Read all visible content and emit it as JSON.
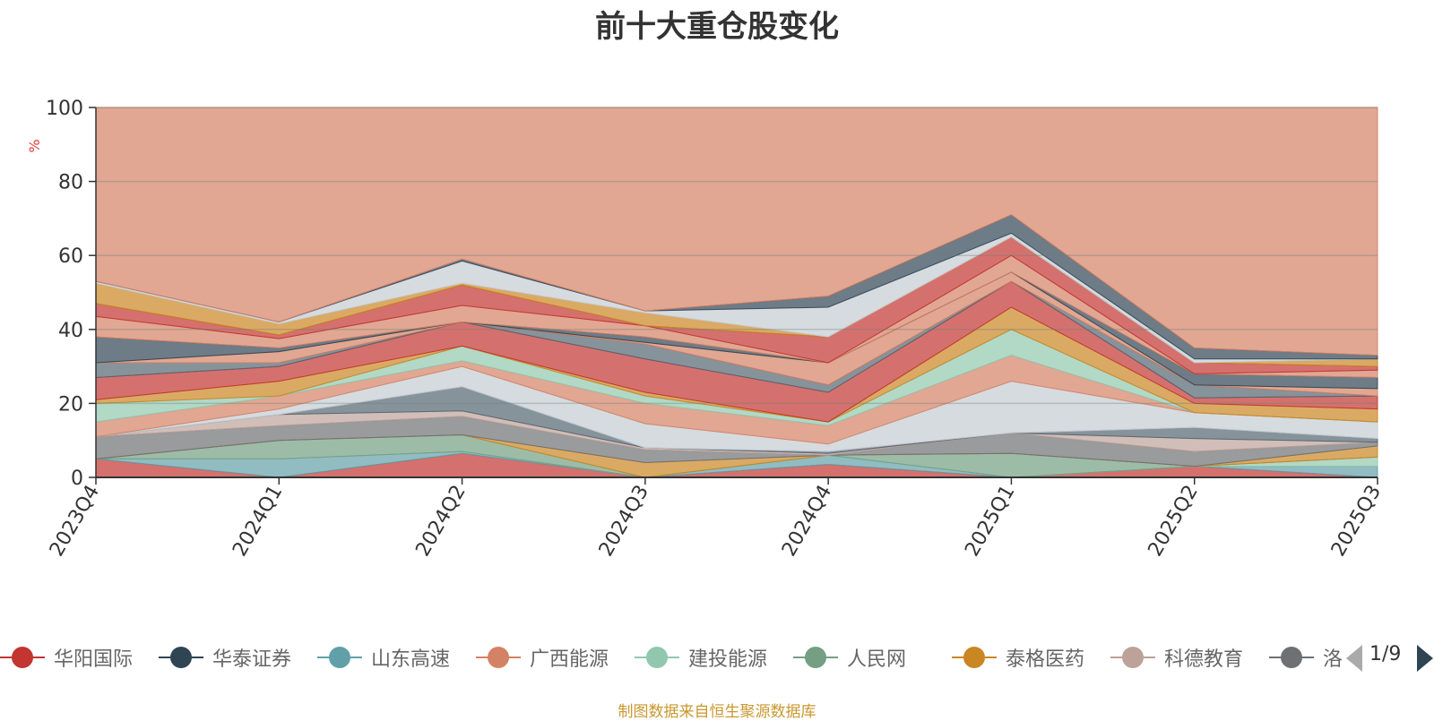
{
  "title": "前十大重仓股变化",
  "source_note": "制图数据来自恒生聚源数据库",
  "legend_page": "1/9",
  "chart_data": {
    "type": "area",
    "title": "前十大重仓股变化",
    "xlabel": "",
    "ylabel": "%",
    "ylim": [
      0,
      100
    ],
    "yticks": [
      0,
      20,
      40,
      60,
      80,
      100
    ],
    "grid": true,
    "legend_placement": "bottom",
    "categories": [
      "2023Q4",
      "2024Q1",
      "2024Q2",
      "2024Q3",
      "2024Q4",
      "2025Q1",
      "2025Q2",
      "2025Q3"
    ],
    "stack_boundaries": [
      [
        0,
        0,
        0,
        0,
        0,
        0,
        0,
        0
      ],
      [
        5,
        0,
        6.5,
        0,
        3.5,
        0,
        3,
        0
      ],
      [
        5,
        5,
        7,
        0,
        6,
        0,
        3,
        3
      ],
      [
        5,
        5,
        7,
        0,
        6,
        0,
        3,
        5.5
      ],
      [
        5,
        10,
        11.5,
        0,
        6,
        6.5,
        3,
        5.5
      ],
      [
        5,
        10,
        11.5,
        4,
        6,
        6.5,
        3,
        8.5
      ],
      [
        11,
        14,
        16.5,
        7.5,
        6,
        12,
        7,
        9.5
      ],
      [
        11,
        17,
        18,
        8,
        6.5,
        12,
        10.5,
        9.5
      ],
      [
        11,
        17,
        24.5,
        8,
        7,
        12,
        13.5,
        10.5
      ],
      [
        11,
        18.5,
        30,
        14.5,
        9,
        26,
        17.5,
        15
      ],
      [
        15,
        22,
        31.5,
        20,
        14,
        33,
        17.5,
        15
      ],
      [
        20,
        22,
        35.5,
        22,
        15,
        40,
        17.5,
        15
      ],
      [
        21,
        26,
        35.5,
        23,
        15,
        46,
        20,
        18.5
      ],
      [
        27,
        30,
        42,
        32,
        23,
        53,
        21.5,
        22
      ],
      [
        31,
        31,
        42,
        36,
        25,
        53,
        25,
        22
      ],
      [
        31,
        34,
        42,
        36.5,
        31,
        55.5,
        25,
        24
      ],
      [
        38,
        35,
        42,
        38,
        31,
        55.5,
        28,
        27
      ],
      [
        43.5,
        37.5,
        46.5,
        41,
        31,
        60,
        28,
        29
      ],
      [
        47,
        38.5,
        52,
        41,
        38,
        65,
        31,
        30
      ],
      [
        52.5,
        41.5,
        52.5,
        44.5,
        38,
        65,
        31,
        32
      ],
      [
        53,
        42,
        58.5,
        45,
        46,
        66,
        32,
        32
      ],
      [
        53,
        42,
        59,
        45,
        49,
        71,
        35,
        33
      ],
      [
        100,
        100,
        100,
        100,
        100,
        100,
        100,
        100
      ]
    ],
    "layer_colors": [
      "#c23531",
      "#61a0a8",
      "#91c7ae",
      "#749f83",
      "#ca8622",
      "#6e7074",
      "#bda29a",
      "#546570",
      "#c4ccd3",
      "#d48265",
      "#91c7ae",
      "#ca8622",
      "#c23531",
      "#546570",
      "#d48265",
      "#2f4554",
      "#d48265",
      "#c23531",
      "#ca8622",
      "#c4ccd3",
      "#2f4554",
      "#d48265",
      "#749f83"
    ],
    "series": [
      {
        "name": "华阳国际",
        "color": "#c23531"
      },
      {
        "name": "华泰证券",
        "color": "#2f4554"
      },
      {
        "name": "山东高速",
        "color": "#61a0a8"
      },
      {
        "name": "广西能源",
        "color": "#d48265"
      },
      {
        "name": "建投能源",
        "color": "#91c7ae"
      },
      {
        "name": "人民网",
        "color": "#749f83"
      },
      {
        "name": "泰格医药",
        "color": "#ca8622"
      },
      {
        "name": "科德教育",
        "color": "#bda29a"
      },
      {
        "name": "洛",
        "color": "#6e7074"
      }
    ]
  }
}
